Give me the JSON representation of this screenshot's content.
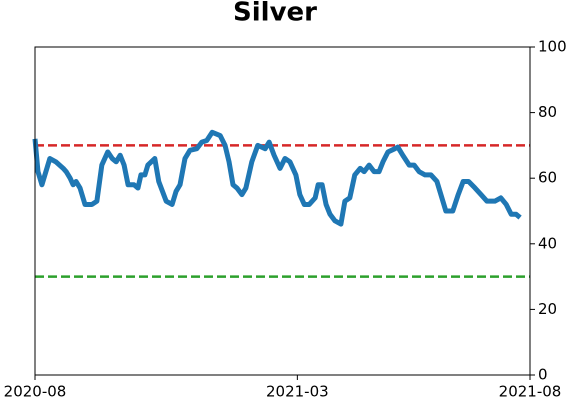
{
  "chart_data": {
    "type": "line",
    "title": "Silver",
    "x": [
      0,
      0.6,
      1.4,
      2.2,
      3,
      4.2,
      5.7,
      6.3,
      7.1,
      7.7,
      8.3,
      9.1,
      10.1,
      11.5,
      12.5,
      13.5,
      14.7,
      15.6,
      16.4,
      17.2,
      18,
      18.8,
      20,
      20.8,
      21.4,
      22.2,
      22.8,
      24.2,
      25,
      26.5,
      27.7,
      28.5,
      29.3,
      30.3,
      31.3,
      32.7,
      33.7,
      34.7,
      35.8,
      37.4,
      38.4,
      39.2,
      40,
      40.8,
      41.8,
      42.6,
      43.8,
      45,
      46.5,
      47.3,
      48.3,
      49.5,
      50.5,
      51.5,
      52.7,
      53.5,
      54.4,
      55.4,
      56.6,
      57.2,
      58,
      58.8,
      59.6,
      60.6,
      61.8,
      62.6,
      63.6,
      64.6,
      65.7,
      66.5,
      67.5,
      68.5,
      69.5,
      70.3,
      71.3,
      72.7,
      73.3,
      74.3,
      75.6,
      76.6,
      77.6,
      78.8,
      80,
      81.2,
      82,
      83,
      84.4,
      85.5,
      86.5,
      87.6,
      88.9,
      90.1,
      91.3,
      92.9,
      94.1,
      95.2,
      96.2,
      97.2,
      98
    ],
    "series": [
      {
        "name": "Silver",
        "color": "#1f77b4",
        "values": [
          72,
          62,
          58,
          62,
          66,
          65,
          63,
          62,
          60,
          58,
          59,
          57,
          52,
          52,
          53,
          64,
          68,
          66,
          65,
          67,
          64,
          58,
          58,
          57,
          61,
          61,
          64,
          66,
          59,
          53,
          52,
          56,
          58,
          66,
          68.5,
          69,
          71,
          71.5,
          74,
          73,
          70,
          65,
          58,
          57,
          55,
          57,
          65,
          70,
          69,
          71,
          67,
          63,
          66,
          65,
          61,
          55,
          52,
          52,
          54,
          58,
          58,
          52,
          49,
          47,
          46,
          53,
          54,
          61,
          63,
          62,
          64,
          62,
          62,
          65,
          68,
          69,
          69.5,
          67,
          64,
          64,
          62,
          61,
          61,
          59,
          55,
          50,
          50,
          55,
          59,
          59,
          57,
          55,
          53,
          53,
          54,
          52,
          49,
          49,
          48
        ]
      }
    ],
    "xlim": [
      0,
      100
    ],
    "xticks": [
      {
        "value": 0,
        "label": "2020-08"
      },
      {
        "value": 53,
        "label": "2021-03"
      },
      {
        "value": 100,
        "label": "2021-08"
      }
    ],
    "ylim": [
      0,
      100
    ],
    "yticks": [
      0,
      20,
      40,
      60,
      80,
      100
    ],
    "hlines": [
      {
        "value": 70,
        "color": "#d62728"
      },
      {
        "value": 30,
        "color": "#2ca02c"
      }
    ]
  }
}
